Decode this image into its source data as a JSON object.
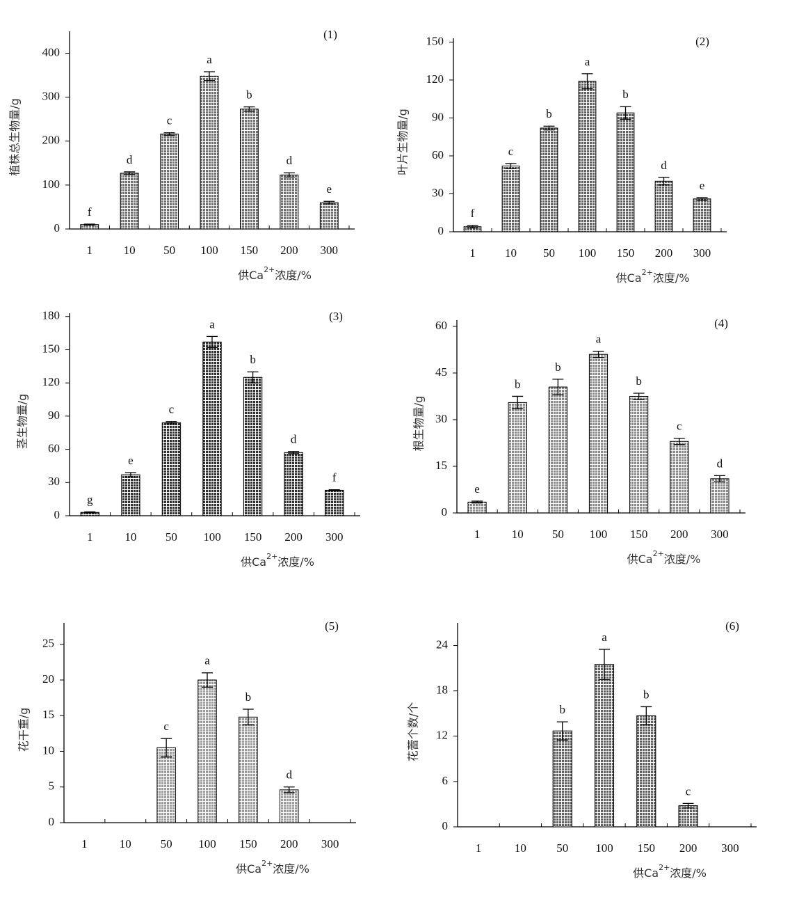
{
  "chart_data": [
    {
      "type": "bar",
      "title": "(1)",
      "ylabel": "植株总生物量/g",
      "xlabel_parts": [
        "供Ca",
        "2+",
        "浓度/%"
      ],
      "categories": [
        "1",
        "10",
        "50",
        "100",
        "150",
        "200",
        "300"
      ],
      "values": [
        10,
        127,
        216,
        348,
        273,
        123,
        60
      ],
      "errors": [
        1,
        3,
        3,
        10,
        5,
        5,
        3
      ],
      "letters": [
        "f",
        "d",
        "c",
        "a",
        "b",
        "d",
        "e"
      ],
      "color": "#707070",
      "ylim": [
        0,
        450
      ],
      "yticks": [
        0,
        100,
        200,
        300,
        400
      ]
    },
    {
      "type": "bar",
      "title": "(2)",
      "ylabel": "叶片生物量/g",
      "xlabel_parts": [
        "供Ca",
        "2+",
        "浓度/%"
      ],
      "categories": [
        "1",
        "10",
        "50",
        "100",
        "150",
        "200",
        "300"
      ],
      "values": [
        4,
        52,
        82,
        119,
        94,
        40,
        26
      ],
      "errors": [
        1,
        2,
        1.5,
        6,
        5,
        3,
        1
      ],
      "letters": [
        "f",
        "c",
        "b",
        "a",
        "b",
        "d",
        "e"
      ],
      "color": "#606060",
      "ylim": [
        0,
        153
      ],
      "yticks": [
        0,
        30,
        60,
        90,
        120,
        150
      ]
    },
    {
      "type": "bar",
      "title": "(3)",
      "ylabel": "茎生物量/g",
      "xlabel_parts": [
        "供Ca",
        "2+",
        "浓度/%"
      ],
      "categories": [
        "1",
        "10",
        "50",
        "100",
        "150",
        "200",
        "300"
      ],
      "values": [
        3,
        37,
        84,
        157,
        125,
        57,
        23
      ],
      "errors": [
        0.5,
        2,
        1,
        5,
        5,
        1,
        0.5
      ],
      "letters": [
        "g",
        "e",
        "c",
        "a",
        "b",
        "d",
        "f"
      ],
      "color": "#303030",
      "ylim": [
        0,
        183
      ],
      "yticks": [
        0,
        30,
        60,
        90,
        120,
        150,
        180
      ]
    },
    {
      "type": "bar",
      "title": "(4)",
      "ylabel": "根生物量/g",
      "xlabel_parts": [
        "供Ca",
        "2+",
        "浓度/%"
      ],
      "categories": [
        "1",
        "10",
        "50",
        "100",
        "150",
        "200",
        "300"
      ],
      "values": [
        3.5,
        35.5,
        40.5,
        51,
        37.5,
        23,
        11
      ],
      "errors": [
        0.3,
        2,
        2.5,
        1,
        1,
        1,
        1
      ],
      "letters": [
        "e",
        "b",
        "b",
        "a",
        "b",
        "c",
        "d"
      ],
      "color": "#8a8a8a",
      "ylim": [
        0,
        62
      ],
      "yticks": [
        0,
        15,
        30,
        45,
        60
      ]
    },
    {
      "type": "bar",
      "title": "(5)",
      "ylabel": "花干重/g",
      "xlabel_parts": [
        "供Ca",
        "2+",
        "浓度/%"
      ],
      "categories": [
        "1",
        "10",
        "50",
        "100",
        "150",
        "200",
        "300"
      ],
      "values": [
        null,
        null,
        10.5,
        20,
        14.8,
        4.6,
        null
      ],
      "errors": [
        null,
        null,
        1.3,
        1,
        1.1,
        0.4,
        null
      ],
      "letters": [
        null,
        null,
        "c",
        "a",
        "b",
        "d",
        null
      ],
      "color": "#9a9a9a",
      "ylim": [
        0,
        28
      ],
      "yticks": [
        0,
        5,
        10,
        15,
        20,
        25
      ]
    },
    {
      "type": "bar",
      "title": "(6)",
      "ylabel": "花蕾个数/个",
      "xlabel_parts": [
        "供Ca",
        "2+",
        "浓度/%"
      ],
      "categories": [
        "1",
        "10",
        "50",
        "100",
        "150",
        "200",
        "300"
      ],
      "values": [
        null,
        null,
        12.7,
        21.5,
        14.7,
        2.8,
        null
      ],
      "errors": [
        null,
        null,
        1.2,
        2,
        1.2,
        0.3,
        null
      ],
      "letters": [
        null,
        null,
        "b",
        "a",
        "b",
        "c",
        null
      ],
      "color": "#606060",
      "ylim": [
        0,
        27
      ],
      "yticks": [
        0,
        6,
        12,
        18,
        24
      ]
    }
  ]
}
